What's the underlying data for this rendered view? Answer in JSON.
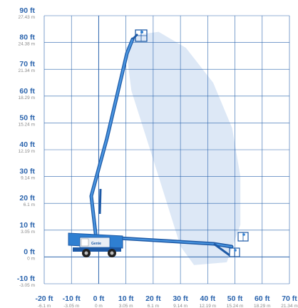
{
  "chart_data": {
    "type": "reach-diagram",
    "y_ticks": [
      {
        "ft": "90 ft",
        "m": "27.43 m"
      },
      {
        "ft": "80 ft",
        "m": "24.38 m"
      },
      {
        "ft": "70 ft",
        "m": "21.34 m"
      },
      {
        "ft": "60 ft",
        "m": "18.29 m"
      },
      {
        "ft": "50 ft",
        "m": "15.24 m"
      },
      {
        "ft": "40 ft",
        "m": "12.19 m"
      },
      {
        "ft": "30 ft",
        "m": "9.14 m"
      },
      {
        "ft": "20 ft",
        "m": "6.1 m"
      },
      {
        "ft": "10 ft",
        "m": "3.05 m"
      },
      {
        "ft": "0 ft",
        "m": "0 m"
      },
      {
        "ft": "-10 ft",
        "m": "-3.05 m"
      }
    ],
    "x_ticks": [
      {
        "ft": "-20 ft",
        "m": "-6.1 m"
      },
      {
        "ft": "-10 ft",
        "m": "-3.05 m"
      },
      {
        "ft": "0 ft",
        "m": "0 m"
      },
      {
        "ft": "10 ft",
        "m": "3.05 m"
      },
      {
        "ft": "20 ft",
        "m": "6.1 m"
      },
      {
        "ft": "30 ft",
        "m": "9.14 m"
      },
      {
        "ft": "40 ft",
        "m": "12.19 m"
      },
      {
        "ft": "50 ft",
        "m": "15.24 m"
      },
      {
        "ft": "60 ft",
        "m": "18.29 m"
      },
      {
        "ft": "70 ft",
        "m": "21.34 m"
      }
    ],
    "x_range_ft": [
      -20,
      70
    ],
    "y_range_ft": [
      -10,
      90
    ],
    "grid": true,
    "max_platform_height_ft": 80,
    "max_horizontal_outreach_ft": 50,
    "brand_text": "Genie",
    "colors": {
      "grid": "#2b64ad",
      "tick_text": "#2b64ad",
      "metric_text": "#8a8a8a",
      "envelope": "#dde8f6",
      "machine": "#2f7fd1",
      "machine_dark": "#1e5aa6"
    }
  }
}
